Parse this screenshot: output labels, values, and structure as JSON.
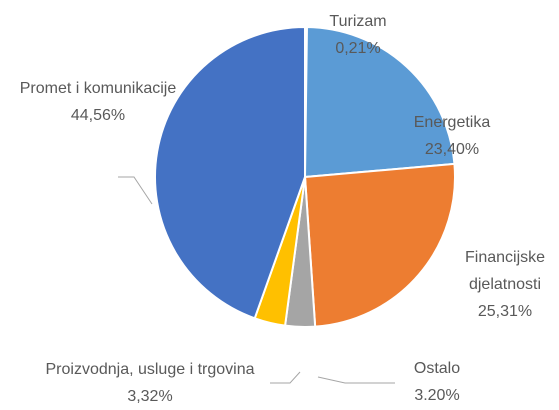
{
  "chart_data": {
    "type": "pie",
    "categories": [
      "Turizam",
      "Energetika",
      "Financijske djelatnosti",
      "Ostalo",
      "Proizvodnja, usluge i trgovina",
      "Promet i komunikacije"
    ],
    "values": [
      0.21,
      23.4,
      25.31,
      3.2,
      3.32,
      44.56
    ],
    "value_labels": [
      "0,21%",
      "23,40%",
      "25,31%",
      "3.20%",
      "3,32%",
      "44,56%"
    ],
    "colors": [
      "#264478",
      "#5b9bd5",
      "#ed7d31",
      "#a5a5a5",
      "#ffc000",
      "#4472c4"
    ]
  }
}
